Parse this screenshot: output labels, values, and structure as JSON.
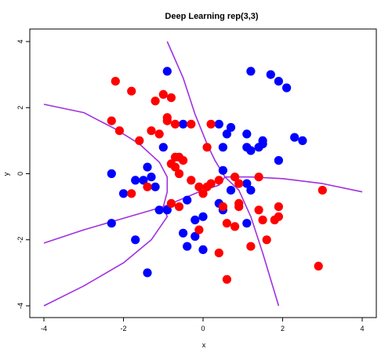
{
  "chart_data": {
    "type": "scatter",
    "title": "Deep Learning rep(3,3)",
    "xlabel": "x",
    "ylabel": "y",
    "xlim": [
      -4,
      4
    ],
    "ylim": [
      -4,
      4
    ],
    "xticks": [
      "-4",
      "-2",
      "0",
      "2",
      "4"
    ],
    "yticks": [
      "-4",
      "-2",
      "0",
      "2",
      "4"
    ],
    "grid": false,
    "legend": "none",
    "series": [
      {
        "color": "#0000ff",
        "points": [
          [
            -0.9,
            3.1
          ],
          [
            1.2,
            3.1
          ],
          [
            1.7,
            3.0
          ],
          [
            1.9,
            2.8
          ],
          [
            2.1,
            2.6
          ],
          [
            -0.5,
            1.5
          ],
          [
            0.4,
            1.5
          ],
          [
            0.7,
            1.4
          ],
          [
            -1.0,
            0.8
          ],
          [
            0.5,
            0.8
          ],
          [
            1.1,
            1.2
          ],
          [
            1.5,
            1.0
          ],
          [
            2.3,
            1.1
          ],
          [
            2.5,
            1.0
          ],
          [
            0.6,
            1.2
          ],
          [
            1.1,
            0.8
          ],
          [
            1.2,
            0.7
          ],
          [
            1.4,
            0.8
          ],
          [
            1.5,
            0.9
          ],
          [
            1.9,
            0.4
          ],
          [
            0.5,
            0.1
          ],
          [
            -1.4,
            0.2
          ],
          [
            -2.3,
            0.0
          ],
          [
            -1.3,
            -0.1
          ],
          [
            -1.5,
            -0.2
          ],
          [
            -1.7,
            -0.2
          ],
          [
            -1.2,
            -0.4
          ],
          [
            -2.0,
            -0.6
          ],
          [
            1.1,
            -0.3
          ],
          [
            0.7,
            -0.5
          ],
          [
            1.2,
            -0.5
          ],
          [
            -1.1,
            -1.1
          ],
          [
            -0.4,
            -0.8
          ],
          [
            0.4,
            -0.9
          ],
          [
            0.5,
            -1.1
          ],
          [
            -0.9,
            -1.1
          ],
          [
            0.0,
            -1.3
          ],
          [
            -0.2,
            -1.4
          ],
          [
            1.1,
            -1.5
          ],
          [
            -0.5,
            -1.8
          ],
          [
            -0.2,
            -1.9
          ],
          [
            -2.3,
            -1.5
          ],
          [
            -1.7,
            -2.0
          ],
          [
            -0.4,
            -2.2
          ],
          [
            0.0,
            -2.3
          ],
          [
            -1.4,
            -3.0
          ]
        ]
      },
      {
        "color": "#ff0000",
        "points": [
          [
            -2.2,
            2.8
          ],
          [
            -1.8,
            2.5
          ],
          [
            -1.2,
            2.2
          ],
          [
            -1.0,
            2.4
          ],
          [
            -0.8,
            2.3
          ],
          [
            -1.3,
            1.3
          ],
          [
            -1.1,
            1.2
          ],
          [
            -0.9,
            1.6
          ],
          [
            -0.9,
            1.7
          ],
          [
            -0.7,
            1.5
          ],
          [
            -0.3,
            1.5
          ],
          [
            0.2,
            1.5
          ],
          [
            -2.3,
            1.6
          ],
          [
            -2.1,
            1.3
          ],
          [
            -1.6,
            1.0
          ],
          [
            -0.8,
            0.3
          ],
          [
            -0.7,
            0.5
          ],
          [
            -0.6,
            0.5
          ],
          [
            -0.5,
            0.4
          ],
          [
            -0.7,
            0.2
          ],
          [
            -0.6,
            0.0
          ],
          [
            0.1,
            0.8
          ],
          [
            -0.3,
            -0.2
          ],
          [
            -0.1,
            -0.4
          ],
          [
            0.1,
            -0.4
          ],
          [
            0.0,
            -0.6
          ],
          [
            0.2,
            -0.3
          ],
          [
            0.4,
            -0.2
          ],
          [
            0.8,
            -0.1
          ],
          [
            0.9,
            -0.3
          ],
          [
            1.4,
            -0.1
          ],
          [
            -1.8,
            -0.6
          ],
          [
            -1.4,
            -0.4
          ],
          [
            -0.8,
            -0.9
          ],
          [
            -0.6,
            -1.0
          ],
          [
            0.5,
            -1.0
          ],
          [
            0.9,
            -1.0
          ],
          [
            0.9,
            -0.9
          ],
          [
            1.4,
            -1.1
          ],
          [
            1.9,
            -1.0
          ],
          [
            1.5,
            -1.4
          ],
          [
            1.8,
            -1.4
          ],
          [
            1.9,
            -1.3
          ],
          [
            0.8,
            -1.6
          ],
          [
            0.6,
            -1.5
          ],
          [
            -0.1,
            -1.7
          ],
          [
            1.6,
            -2.0
          ],
          [
            1.2,
            -2.2
          ],
          [
            0.4,
            -2.4
          ],
          [
            3.0,
            -0.5
          ],
          [
            2.9,
            -2.8
          ],
          [
            0.6,
            -3.2
          ]
        ]
      }
    ],
    "boundary": {
      "color": "#a030e0",
      "curves": [
        [
          [
            -0.9,
            4.0
          ],
          [
            -0.5,
            2.9
          ],
          [
            -0.2,
            1.8
          ],
          [
            0.1,
            0.9
          ],
          [
            0.3,
            0.4
          ],
          [
            0.5,
            0.0
          ],
          [
            0.55,
            -0.1
          ]
        ],
        [
          [
            -4.0,
            2.1
          ],
          [
            -3.0,
            1.85
          ],
          [
            -2.2,
            1.35
          ],
          [
            -1.6,
            0.9
          ],
          [
            -1.1,
            0.35
          ],
          [
            -0.9,
            -0.1
          ],
          [
            -0.9,
            -0.55
          ],
          [
            -1.0,
            -1.0
          ]
        ],
        [
          [
            -4.0,
            -2.1
          ],
          [
            -3.0,
            -1.7
          ],
          [
            -2.0,
            -1.35
          ],
          [
            -1.0,
            -1.0
          ],
          [
            -0.5,
            -0.75
          ],
          [
            0.0,
            -0.5
          ],
          [
            0.4,
            -0.35
          ],
          [
            0.55,
            -0.1
          ]
        ],
        [
          [
            -4.0,
            -4.0
          ],
          [
            -3.0,
            -3.4
          ],
          [
            -2.0,
            -2.7
          ],
          [
            -1.3,
            -2.0
          ],
          [
            -0.9,
            -1.3
          ],
          [
            -1.0,
            -1.0
          ]
        ],
        [
          [
            0.55,
            -0.1
          ],
          [
            0.9,
            -0.5
          ],
          [
            1.2,
            -1.3
          ],
          [
            1.5,
            -2.4
          ],
          [
            1.9,
            -4.0
          ]
        ],
        [
          [
            0.55,
            -0.1
          ],
          [
            1.2,
            -0.1
          ],
          [
            2.0,
            -0.15
          ],
          [
            3.0,
            -0.3
          ],
          [
            4.0,
            -0.55
          ]
        ]
      ]
    }
  }
}
